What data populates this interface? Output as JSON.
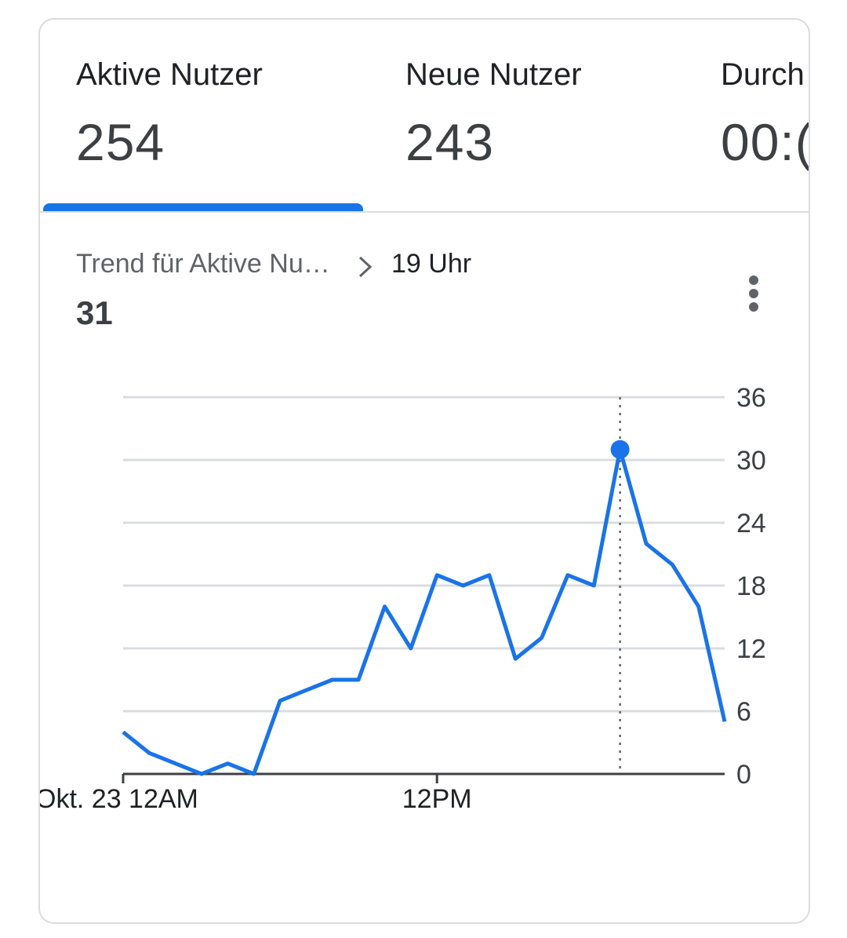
{
  "tabs": [
    {
      "label": "Aktive Nutzer",
      "value": "254"
    },
    {
      "label": "Neue Nutzer",
      "value": "243"
    },
    {
      "label": "Durch",
      "value": "00:("
    }
  ],
  "trend": {
    "crumb": "Trend für Aktive Nu…",
    "time": "19 Uhr",
    "value": "31"
  },
  "colors": {
    "accent": "#1a73e8",
    "grid": "#dadce0"
  },
  "icons": {
    "chevron": "chevron-right-icon",
    "more": "more-vert-icon"
  },
  "chart_data": {
    "type": "line",
    "x_tick_labels": [
      "Okt. 23 12AM",
      "12PM"
    ],
    "y_ticks": [
      0,
      6,
      12,
      18,
      24,
      30,
      36
    ],
    "ylim": [
      0,
      36
    ],
    "grid": true,
    "x": [
      0,
      1,
      2,
      3,
      4,
      5,
      6,
      7,
      8,
      9,
      10,
      11,
      12,
      13,
      14,
      15,
      16,
      17,
      18,
      19,
      20,
      21,
      22,
      23
    ],
    "series": [
      {
        "values": [
          4,
          2,
          1,
          0,
          1,
          0,
          7,
          8,
          9,
          9,
          16,
          12,
          19,
          18,
          19,
          11,
          13,
          19,
          18,
          31,
          22,
          20,
          16,
          5
        ]
      }
    ],
    "highlight": {
      "x": 19,
      "value": 31
    }
  }
}
